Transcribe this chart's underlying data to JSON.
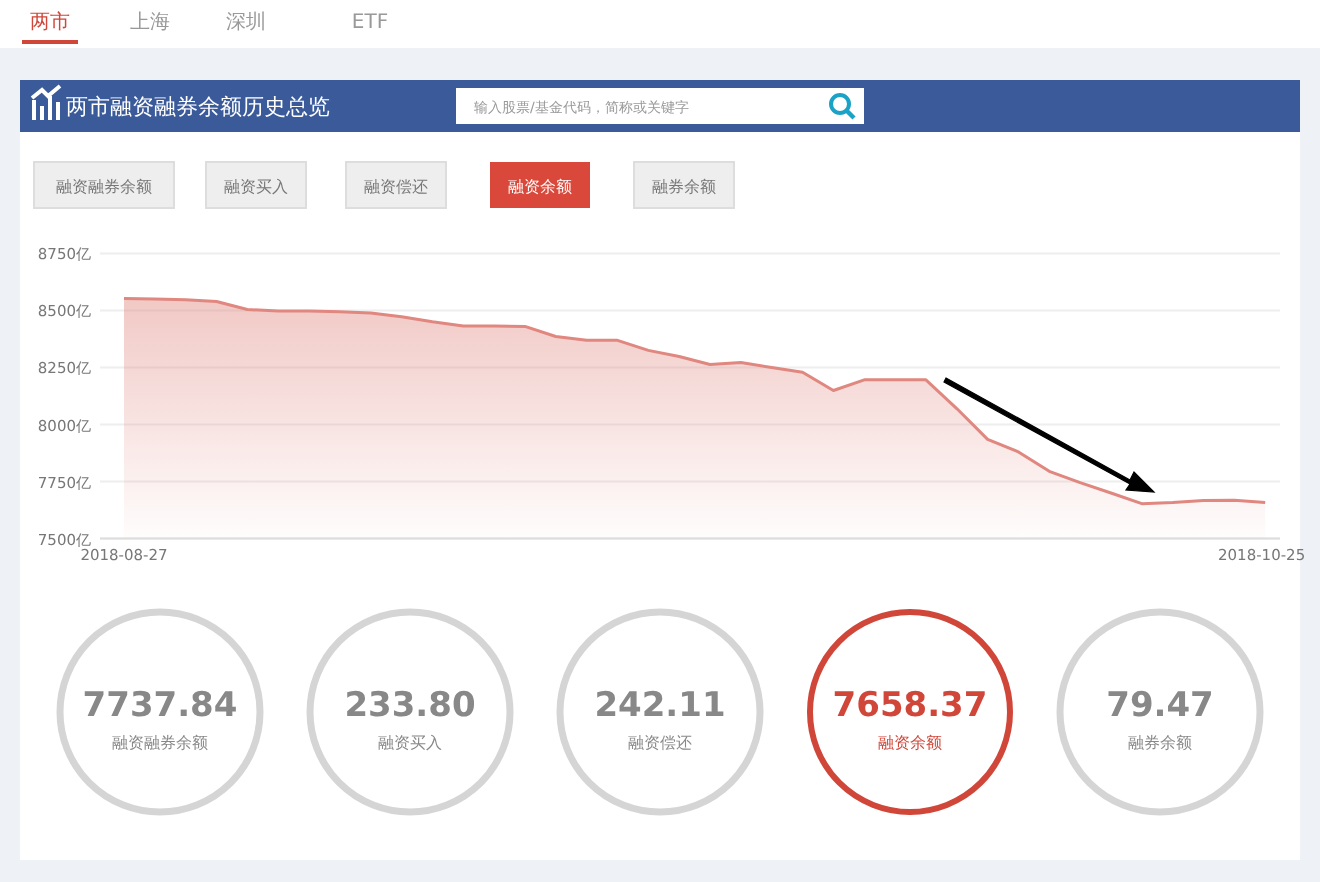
{
  "chart_data": [
    {
      "type": "other",
      "annotations": [
        "两市",
        "上海",
        "深圳",
        "ETF",
        "输入股票/基金代码，简称或关键字",
        "融资融券余额",
        "融资买入",
        "融资偿还",
        "融资余额",
        "融券余额"
      ]
    },
    {
      "type": "area",
      "title": "两市融资融券余额历史总览",
      "categories": [
        "2018-08-27",
        null,
        null,
        null,
        null,
        null,
        null,
        null,
        null,
        null,
        null,
        null,
        null,
        null,
        null,
        null,
        null,
        null,
        null,
        null,
        null,
        null,
        null,
        null,
        null,
        null,
        null,
        null,
        null,
        null,
        null,
        null,
        null,
        null,
        null,
        null,
        null,
        "2018-10-25"
      ],
      "values": [
        8552,
        8550,
        8547,
        8539,
        8504,
        8498,
        8497,
        8494,
        8489,
        8472,
        8450,
        8432,
        8432,
        8430,
        8386,
        8369,
        8369,
        8325,
        8298,
        8263,
        8272,
        8250,
        8229,
        8149,
        8196,
        8196,
        8196,
        8070,
        7935,
        7880,
        7795,
        7745,
        7700,
        7653,
        7658,
        7667,
        7668,
        7658
      ],
      "color": "#e0877f",
      "ylim": [
        7500,
        8750
      ],
      "yticks": [
        {
          "value": 7500,
          "label": "7500亿"
        },
        {
          "value": 7750,
          "label": "7750亿"
        },
        {
          "value": 8000,
          "label": "8000亿"
        },
        {
          "value": 8250,
          "label": "8250亿"
        },
        {
          "value": 8500,
          "label": "8500亿"
        },
        {
          "value": 8750,
          "label": "8750亿"
        }
      ],
      "grid": "y"
    },
    {
      "type": "other",
      "categories": [
        "融资融券余额",
        "融资买入",
        "融资偿还",
        "融资余额",
        "融券余额"
      ],
      "annotations": [
        "7737.84",
        "233.80",
        "242.11",
        "7658.37",
        "79.47"
      ],
      "colors": [
        "#d5d5d5",
        "#d5d5d5",
        "#d5d5d5",
        "#d0473a",
        "#d5d5d5"
      ]
    }
  ]
}
